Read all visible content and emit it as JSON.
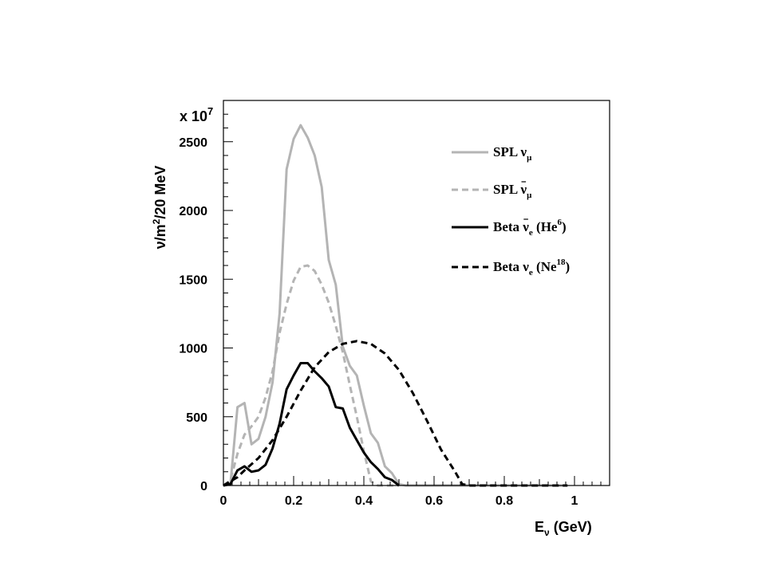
{
  "chart_data": {
    "type": "line",
    "title": "",
    "xlabel_main": "E",
    "xlabel_sub": "ν",
    "xlabel_rest": " (GeV)",
    "ylabel_pre": "ν/m",
    "ylabel_sup": "2",
    "ylabel_post": "/20 MeV",
    "y_multiplier_base": "x 10",
    "y_multiplier_exp": "7",
    "xlim": [
      0,
      1.1
    ],
    "ylim": [
      0,
      2800
    ],
    "x_ticks": [
      0,
      0.2,
      0.4,
      0.6,
      0.8,
      1
    ],
    "x_tick_labels": [
      "0",
      "0.2",
      "0.4",
      "0.6",
      "0.8",
      "1"
    ],
    "y_ticks": [
      0,
      500,
      1000,
      1500,
      2000,
      2500
    ],
    "y_tick_labels": [
      "0",
      "500",
      "1000",
      "1500",
      "2000",
      "2500"
    ],
    "legend_position": "top-right",
    "series": [
      {
        "legend_main": "SPL ",
        "legend_symbol": "ν",
        "legend_bar": false,
        "legend_sub": "μ",
        "legend_paren_open": "",
        "legend_nucleus": "",
        "legend_sup": "",
        "legend_paren_close": "",
        "color": "#b4b4b4",
        "dash": "solid",
        "points": [
          [
            0,
            0
          ],
          [
            0.02,
            10
          ],
          [
            0.04,
            570
          ],
          [
            0.06,
            600
          ],
          [
            0.08,
            300
          ],
          [
            0.1,
            340
          ],
          [
            0.12,
            500
          ],
          [
            0.14,
            750
          ],
          [
            0.16,
            1250
          ],
          [
            0.18,
            2300
          ],
          [
            0.2,
            2520
          ],
          [
            0.22,
            2620
          ],
          [
            0.24,
            2530
          ],
          [
            0.26,
            2400
          ],
          [
            0.28,
            2170
          ],
          [
            0.3,
            1640
          ],
          [
            0.32,
            1460
          ],
          [
            0.34,
            1010
          ],
          [
            0.36,
            870
          ],
          [
            0.38,
            800
          ],
          [
            0.4,
            580
          ],
          [
            0.42,
            380
          ],
          [
            0.44,
            310
          ],
          [
            0.46,
            140
          ],
          [
            0.48,
            90
          ],
          [
            0.5,
            10
          ],
          [
            0.52,
            0
          ],
          [
            0.6,
            0
          ],
          [
            0.8,
            0
          ],
          [
            0.98,
            0
          ]
        ]
      },
      {
        "legend_main": "SPL ",
        "legend_symbol": "ν",
        "legend_bar": true,
        "legend_sub": "μ",
        "legend_paren_open": "",
        "legend_nucleus": "",
        "legend_sup": "",
        "legend_paren_close": "",
        "color": "#b4b4b4",
        "dash": "dashed",
        "points": [
          [
            0,
            0
          ],
          [
            0.02,
            40
          ],
          [
            0.04,
            230
          ],
          [
            0.06,
            370
          ],
          [
            0.08,
            430
          ],
          [
            0.1,
            500
          ],
          [
            0.12,
            640
          ],
          [
            0.14,
            830
          ],
          [
            0.16,
            1110
          ],
          [
            0.18,
            1320
          ],
          [
            0.2,
            1490
          ],
          [
            0.22,
            1590
          ],
          [
            0.24,
            1600
          ],
          [
            0.26,
            1560
          ],
          [
            0.28,
            1460
          ],
          [
            0.3,
            1330
          ],
          [
            0.32,
            1160
          ],
          [
            0.34,
            970
          ],
          [
            0.36,
            730
          ],
          [
            0.38,
            500
          ],
          [
            0.4,
            250
          ],
          [
            0.42,
            30
          ],
          [
            0.44,
            0
          ],
          [
            0.5,
            0
          ]
        ]
      },
      {
        "legend_main": "Beta ",
        "legend_symbol": "ν",
        "legend_bar": true,
        "legend_sub": "e",
        "legend_paren_open": " (He",
        "legend_nucleus": "",
        "legend_sup": "6",
        "legend_paren_close": ")",
        "color": "#000000",
        "dash": "solid",
        "points": [
          [
            0,
            0
          ],
          [
            0.02,
            10
          ],
          [
            0.04,
            110
          ],
          [
            0.06,
            140
          ],
          [
            0.08,
            100
          ],
          [
            0.1,
            110
          ],
          [
            0.12,
            150
          ],
          [
            0.14,
            270
          ],
          [
            0.16,
            450
          ],
          [
            0.18,
            700
          ],
          [
            0.2,
            800
          ],
          [
            0.22,
            890
          ],
          [
            0.24,
            890
          ],
          [
            0.26,
            830
          ],
          [
            0.28,
            780
          ],
          [
            0.3,
            720
          ],
          [
            0.32,
            570
          ],
          [
            0.34,
            560
          ],
          [
            0.36,
            420
          ],
          [
            0.38,
            330
          ],
          [
            0.4,
            240
          ],
          [
            0.42,
            170
          ],
          [
            0.44,
            120
          ],
          [
            0.46,
            60
          ],
          [
            0.48,
            40
          ],
          [
            0.5,
            0
          ]
        ]
      },
      {
        "legend_main": "Beta ",
        "legend_symbol": "ν",
        "legend_bar": false,
        "legend_sub": "e",
        "legend_paren_open": " (Ne",
        "legend_nucleus": "",
        "legend_sup": "18",
        "legend_paren_close": ")",
        "color": "#000000",
        "dash": "dashed",
        "points": [
          [
            0,
            0
          ],
          [
            0.02,
            30
          ],
          [
            0.04,
            60
          ],
          [
            0.06,
            110
          ],
          [
            0.1,
            200
          ],
          [
            0.14,
            330
          ],
          [
            0.18,
            500
          ],
          [
            0.22,
            690
          ],
          [
            0.26,
            860
          ],
          [
            0.3,
            970
          ],
          [
            0.34,
            1030
          ],
          [
            0.38,
            1050
          ],
          [
            0.42,
            1030
          ],
          [
            0.46,
            960
          ],
          [
            0.5,
            840
          ],
          [
            0.54,
            670
          ],
          [
            0.58,
            470
          ],
          [
            0.62,
            260
          ],
          [
            0.66,
            100
          ],
          [
            0.68,
            10
          ],
          [
            0.7,
            0
          ],
          [
            0.8,
            0
          ],
          [
            0.98,
            0
          ]
        ]
      }
    ]
  }
}
